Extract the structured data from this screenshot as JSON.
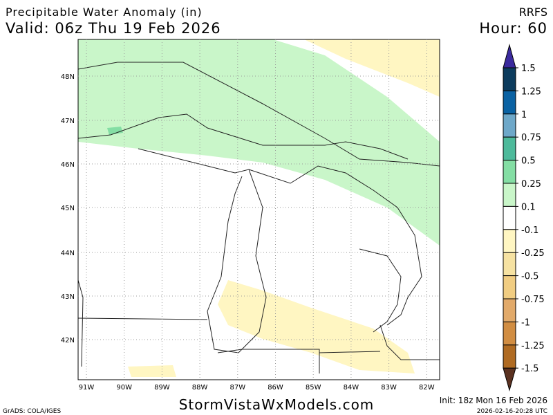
{
  "header": {
    "title": "Precipitable Water Anomaly (in)",
    "valid": "Valid: 06z Thu 19 Feb 2026",
    "model": "RRFS",
    "hour": "Hour: 60"
  },
  "map": {
    "lat_labels": [
      "48N",
      "47N",
      "46N",
      "45N",
      "44N",
      "43N",
      "42N"
    ],
    "lon_labels": [
      "91W",
      "90W",
      "89W",
      "88W",
      "87W",
      "86W",
      "85W",
      "84W",
      "83W",
      "82W"
    ]
  },
  "colorbar": {
    "labels": [
      "1.5",
      "1.25",
      "1",
      "0.75",
      "0.5",
      "0.25",
      "0.1",
      "-0.1",
      "-0.25",
      "-0.5",
      "-0.75",
      "-1",
      "-1.25",
      "-1.5"
    ],
    "colors": [
      "#3b2a9e",
      "#0c3c5e",
      "#0a62a3",
      "#6ea8c9",
      "#4dba9b",
      "#84dea4",
      "#c9f6c9",
      "#ffffff",
      "#fff6c2",
      "#f6e2a2",
      "#f1cd82",
      "#e2aa6a",
      "#d18d42",
      "#b06b22",
      "#5a3120"
    ]
  },
  "footer": {
    "site": "StormVistaWxModels.com",
    "init": "Init: 18z Mon 16 Feb 2026",
    "credit": "GrADS: COLA/IGES",
    "timestamp": "2026-02-16-20:28 UTC"
  }
}
